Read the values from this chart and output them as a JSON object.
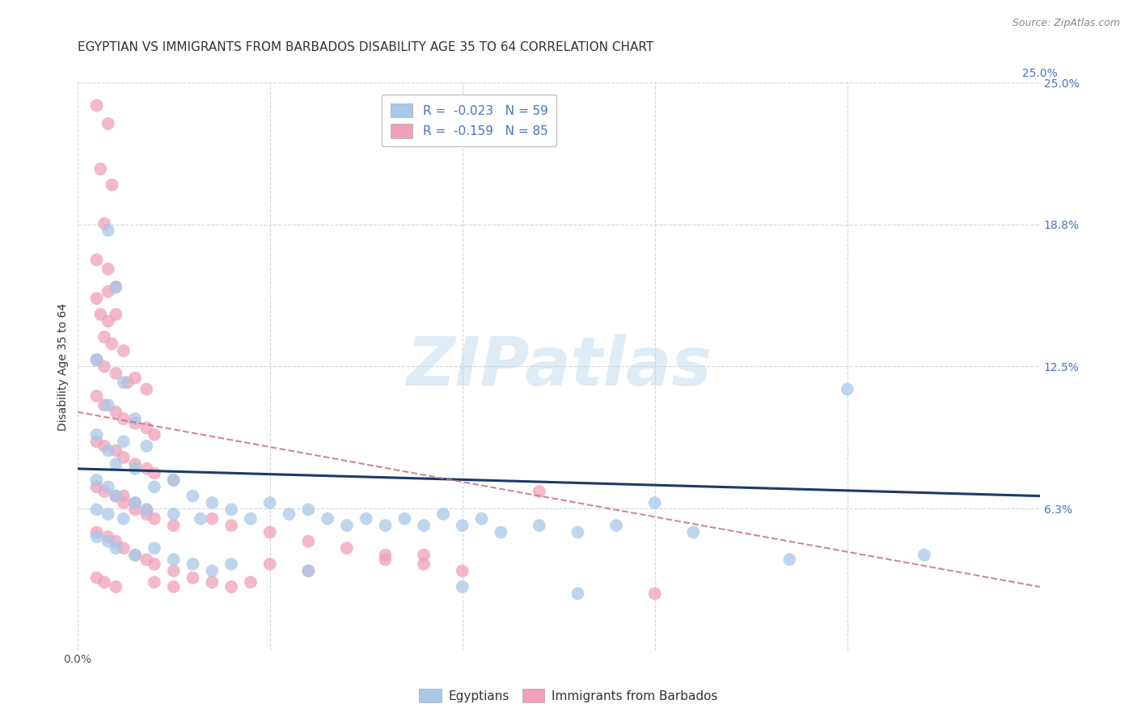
{
  "title": "EGYPTIAN VS IMMIGRANTS FROM BARBADOS DISABILITY AGE 35 TO 64 CORRELATION CHART",
  "source": "Source: ZipAtlas.com",
  "ylabel": "Disability Age 35 to 64",
  "xlim": [
    0.0,
    0.25
  ],
  "ylim": [
    0.0,
    0.25
  ],
  "watermark": "ZIPatlas",
  "blue_color": "#a8c8e8",
  "pink_color": "#f0a0b8",
  "blue_line_color": "#1a3a6a",
  "pink_line_color": "#c87090",
  "blue_scatter": [
    [
      0.008,
      0.185
    ],
    [
      0.01,
      0.16
    ],
    [
      0.005,
      0.128
    ],
    [
      0.012,
      0.118
    ],
    [
      0.008,
      0.108
    ],
    [
      0.015,
      0.102
    ],
    [
      0.005,
      0.095
    ],
    [
      0.012,
      0.092
    ],
    [
      0.018,
      0.09
    ],
    [
      0.008,
      0.088
    ],
    [
      0.01,
      0.082
    ],
    [
      0.015,
      0.08
    ],
    [
      0.005,
      0.075
    ],
    [
      0.008,
      0.072
    ],
    [
      0.02,
      0.072
    ],
    [
      0.025,
      0.075
    ],
    [
      0.01,
      0.068
    ],
    [
      0.015,
      0.065
    ],
    [
      0.005,
      0.062
    ],
    [
      0.008,
      0.06
    ],
    [
      0.012,
      0.058
    ],
    [
      0.018,
      0.062
    ],
    [
      0.03,
      0.068
    ],
    [
      0.035,
      0.065
    ],
    [
      0.025,
      0.06
    ],
    [
      0.032,
      0.058
    ],
    [
      0.04,
      0.062
    ],
    [
      0.045,
      0.058
    ],
    [
      0.05,
      0.065
    ],
    [
      0.055,
      0.06
    ],
    [
      0.06,
      0.062
    ],
    [
      0.065,
      0.058
    ],
    [
      0.07,
      0.055
    ],
    [
      0.075,
      0.058
    ],
    [
      0.08,
      0.055
    ],
    [
      0.085,
      0.058
    ],
    [
      0.09,
      0.055
    ],
    [
      0.095,
      0.06
    ],
    [
      0.1,
      0.055
    ],
    [
      0.105,
      0.058
    ],
    [
      0.11,
      0.052
    ],
    [
      0.12,
      0.055
    ],
    [
      0.13,
      0.052
    ],
    [
      0.14,
      0.055
    ],
    [
      0.15,
      0.065
    ],
    [
      0.16,
      0.052
    ],
    [
      0.005,
      0.05
    ],
    [
      0.008,
      0.048
    ],
    [
      0.01,
      0.045
    ],
    [
      0.015,
      0.042
    ],
    [
      0.02,
      0.045
    ],
    [
      0.025,
      0.04
    ],
    [
      0.03,
      0.038
    ],
    [
      0.035,
      0.035
    ],
    [
      0.04,
      0.038
    ],
    [
      0.06,
      0.035
    ],
    [
      0.1,
      0.028
    ],
    [
      0.13,
      0.025
    ],
    [
      0.2,
      0.115
    ],
    [
      0.185,
      0.04
    ],
    [
      0.22,
      0.042
    ]
  ],
  "pink_scatter": [
    [
      0.005,
      0.24
    ],
    [
      0.008,
      0.232
    ],
    [
      0.006,
      0.212
    ],
    [
      0.009,
      0.205
    ],
    [
      0.007,
      0.188
    ],
    [
      0.005,
      0.172
    ],
    [
      0.008,
      0.168
    ],
    [
      0.005,
      0.155
    ],
    [
      0.008,
      0.158
    ],
    [
      0.01,
      0.16
    ],
    [
      0.006,
      0.148
    ],
    [
      0.008,
      0.145
    ],
    [
      0.01,
      0.148
    ],
    [
      0.007,
      0.138
    ],
    [
      0.009,
      0.135
    ],
    [
      0.012,
      0.132
    ],
    [
      0.005,
      0.128
    ],
    [
      0.007,
      0.125
    ],
    [
      0.01,
      0.122
    ],
    [
      0.013,
      0.118
    ],
    [
      0.015,
      0.12
    ],
    [
      0.018,
      0.115
    ],
    [
      0.005,
      0.112
    ],
    [
      0.007,
      0.108
    ],
    [
      0.01,
      0.105
    ],
    [
      0.012,
      0.102
    ],
    [
      0.015,
      0.1
    ],
    [
      0.018,
      0.098
    ],
    [
      0.02,
      0.095
    ],
    [
      0.005,
      0.092
    ],
    [
      0.007,
      0.09
    ],
    [
      0.01,
      0.088
    ],
    [
      0.012,
      0.085
    ],
    [
      0.015,
      0.082
    ],
    [
      0.018,
      0.08
    ],
    [
      0.02,
      0.078
    ],
    [
      0.025,
      0.075
    ],
    [
      0.005,
      0.072
    ],
    [
      0.007,
      0.07
    ],
    [
      0.01,
      0.068
    ],
    [
      0.012,
      0.065
    ],
    [
      0.015,
      0.062
    ],
    [
      0.018,
      0.06
    ],
    [
      0.02,
      0.058
    ],
    [
      0.025,
      0.055
    ],
    [
      0.005,
      0.052
    ],
    [
      0.008,
      0.05
    ],
    [
      0.01,
      0.048
    ],
    [
      0.012,
      0.045
    ],
    [
      0.015,
      0.042
    ],
    [
      0.018,
      0.04
    ],
    [
      0.02,
      0.038
    ],
    [
      0.025,
      0.035
    ],
    [
      0.005,
      0.032
    ],
    [
      0.007,
      0.03
    ],
    [
      0.01,
      0.028
    ],
    [
      0.012,
      0.068
    ],
    [
      0.015,
      0.065
    ],
    [
      0.018,
      0.062
    ],
    [
      0.035,
      0.058
    ],
    [
      0.04,
      0.055
    ],
    [
      0.05,
      0.052
    ],
    [
      0.06,
      0.048
    ],
    [
      0.07,
      0.045
    ],
    [
      0.08,
      0.042
    ],
    [
      0.09,
      0.038
    ],
    [
      0.1,
      0.035
    ],
    [
      0.12,
      0.07
    ],
    [
      0.05,
      0.038
    ],
    [
      0.06,
      0.035
    ],
    [
      0.08,
      0.04
    ],
    [
      0.09,
      0.042
    ],
    [
      0.04,
      0.028
    ],
    [
      0.045,
      0.03
    ],
    [
      0.03,
      0.032
    ],
    [
      0.035,
      0.03
    ],
    [
      0.025,
      0.028
    ],
    [
      0.02,
      0.03
    ],
    [
      0.15,
      0.025
    ]
  ],
  "blue_line": [
    [
      0.0,
      0.08
    ],
    [
      0.25,
      0.068
    ]
  ],
  "pink_line": [
    [
      0.0,
      0.105
    ],
    [
      0.25,
      0.028
    ]
  ],
  "grid_color": "#cccccc",
  "bg_color": "#ffffff",
  "title_fontsize": 11,
  "axis_fontsize": 10,
  "tick_fontsize": 10,
  "right_tick_color": "#4472c4"
}
